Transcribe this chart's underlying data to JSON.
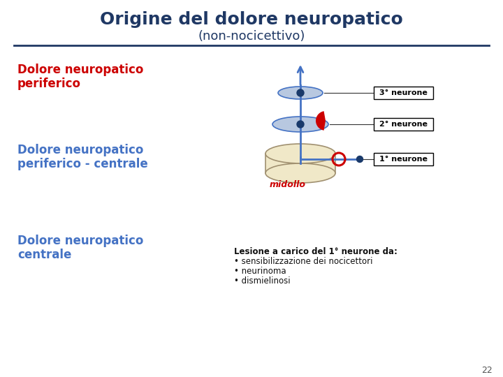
{
  "title_line1": "Origine del dolore neuropatico",
  "title_line2": "(non-nocicettivo)",
  "title_color": "#1f3864",
  "bg_color": "#ffffff",
  "separator_color": "#1f3864",
  "label1_line1": "Dolore neuropatico",
  "label1_line2": "periferico",
  "label1_color": "#cc0000",
  "label2_line1": "Dolore neuropatico",
  "label2_line2": "periferico - centrale",
  "label2_color": "#4472c4",
  "label3_line1": "Dolore neuropatico",
  "label3_line2": "centrale",
  "label3_color": "#4472c4",
  "neurone3_label": "3° neurone",
  "neurone2_label": "2° neurone",
  "neurone1_label": "1° neurone",
  "midollo_label": "midollo",
  "bullet_title": "Lesione a carico del 1° neurone da:",
  "bullet1": "• sensibilizzazione dei nocicettori",
  "bullet2": "• neurinoma",
  "bullet3": "• dismielinosi",
  "page_number": "22",
  "box_color": "#000000",
  "box_fill": "#ffffff",
  "arrow_color": "#4472c4",
  "disk_fill": "#b8c8e0",
  "disk_edge": "#4472c4",
  "cylinder_fill": "#f0e8c8",
  "cylinder_edge": "#a09070",
  "dot_color": "#1a3a6b",
  "red_shape_color": "#cc0000",
  "circle_edge": "#cc0000",
  "line_color": "#333333"
}
